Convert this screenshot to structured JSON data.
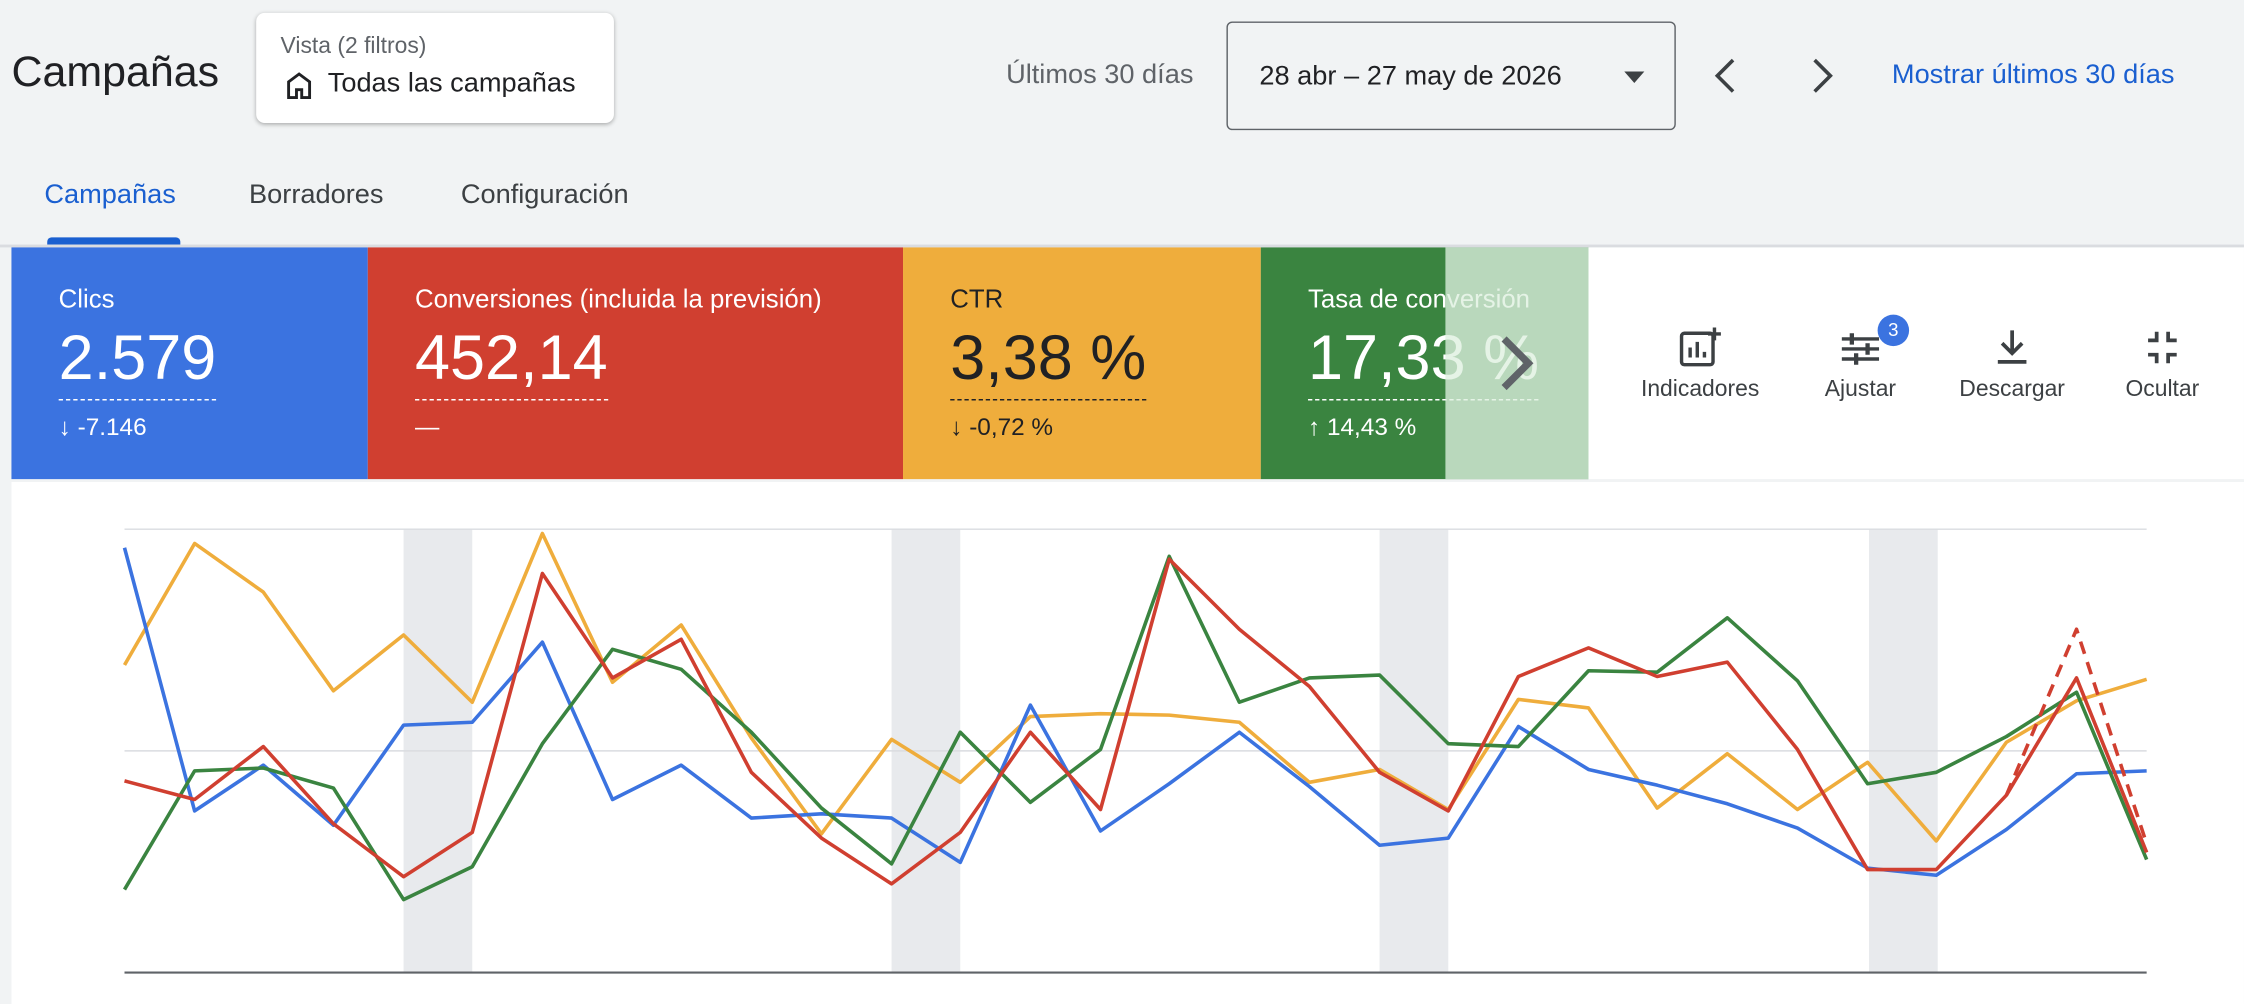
{
  "header": {
    "title": "Campañas",
    "view": {
      "label": "Vista (2 filtros)",
      "value": "Todas las campañas"
    },
    "range_label": "Últimos 30 días",
    "date_range": "28 abr – 27 may de 2026",
    "link": "Mostrar últimos 30 días"
  },
  "tabs": [
    "Campañas",
    "Borradores",
    "Configuración"
  ],
  "metrics": [
    {
      "label": "Clics",
      "value": "2.579",
      "delta": "-7.146"
    },
    {
      "label": "Conversiones (incluida la previsión)",
      "value": "452,14",
      "delta": "—"
    },
    {
      "label": "CTR",
      "value": "3,38 %",
      "delta": "-0,72 %"
    },
    {
      "label": "Tasa de conversión",
      "value": "17,33 %",
      "delta": "14,43 %"
    }
  ],
  "actions": [
    {
      "label": "Indicadores"
    },
    {
      "label": "Ajustar",
      "badge": 3
    },
    {
      "label": "Descargar"
    },
    {
      "label": "Ocultar"
    }
  ]
}
